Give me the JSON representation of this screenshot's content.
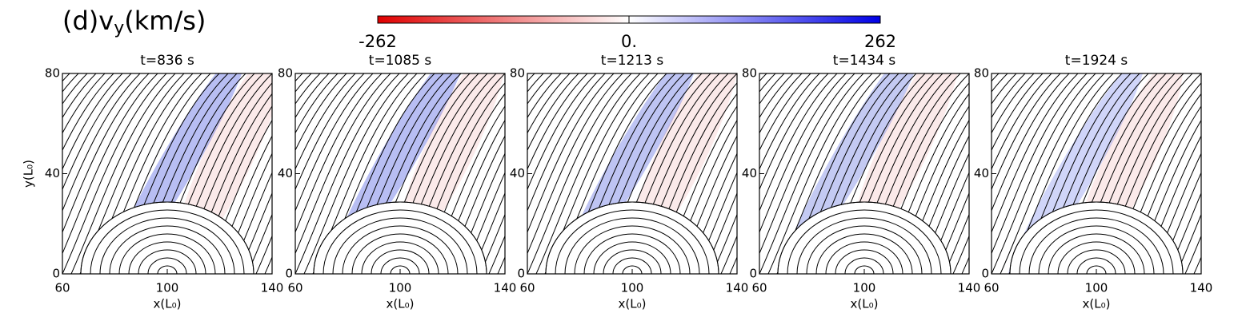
{
  "figure_label": [
    "(d)v",
    "y",
    "(km/s)"
  ],
  "colorbar": {
    "range": [
      -262,
      262
    ],
    "ticks": [
      -262,
      {
        "value": 0,
        "label": "0."
      },
      262
    ],
    "colors": [
      "#e00000",
      "#ffffff",
      "#0000e6"
    ]
  },
  "chart_data": [
    {
      "type": "heatmap",
      "title": "t=836 s",
      "x_label": "x(L₀)",
      "y_label": "y(L₀)",
      "xlim": [
        60,
        140
      ],
      "xticks": [
        60,
        100,
        140
      ],
      "ylim": [
        0,
        80
      ],
      "yticks": [
        0,
        40,
        80
      ]
    },
    {
      "type": "heatmap",
      "title": "t=1085 s",
      "x_label": "x(L₀)",
      "xlim": [
        60,
        140
      ],
      "xticks": [
        60,
        100,
        140
      ],
      "ylim": [
        0,
        80
      ],
      "yticks": [
        0,
        40,
        80
      ]
    },
    {
      "type": "heatmap",
      "title": "t=1213 s",
      "x_label": "x(L₀)",
      "xlim": [
        60,
        140
      ],
      "xticks": [
        60,
        100,
        140
      ],
      "ylim": [
        0,
        80
      ],
      "yticks": [
        0,
        40,
        80
      ]
    },
    {
      "type": "heatmap",
      "title": "t=1434 s",
      "x_label": "x(L₀)",
      "xlim": [
        60,
        140
      ],
      "xticks": [
        60,
        100,
        140
      ],
      "ylim": [
        0,
        80
      ],
      "yticks": [
        0,
        40,
        80
      ]
    },
    {
      "type": "heatmap",
      "title": "t=1924 s",
      "x_label": "x(L₀)",
      "xlim": [
        60,
        140
      ],
      "xticks": [
        60,
        100,
        140
      ],
      "ylim": [
        0,
        80
      ],
      "yticks": [
        0,
        40,
        80
      ]
    }
  ]
}
